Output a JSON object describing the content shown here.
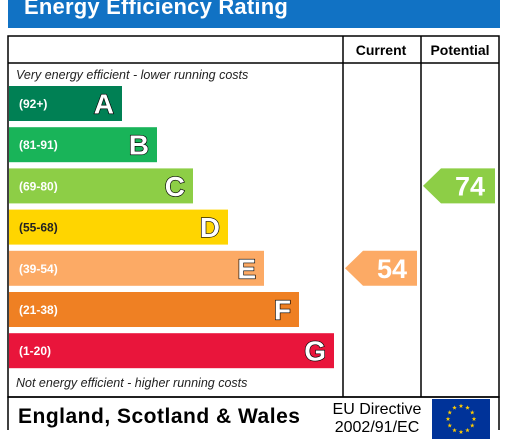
{
  "title": "Energy Efficiency Rating",
  "columns": {
    "current": "Current",
    "potential": "Potential"
  },
  "top_note": "Very energy efficient - lower running costs",
  "bottom_note": "Not energy efficient - higher running costs",
  "footer": {
    "country": "England, Scotland & Wales",
    "directive_line1": "EU Directive",
    "directive_line2": "2002/91/EC"
  },
  "chart_data": {
    "type": "bar",
    "title": "Energy Efficiency Rating",
    "categories": [
      "A",
      "B",
      "C",
      "D",
      "E",
      "F",
      "G"
    ],
    "ranges": [
      "(92+)",
      "(81-91)",
      "(69-80)",
      "(55-68)",
      "(39-54)",
      "(21-38)",
      "(1-20)"
    ],
    "band_colors": [
      "#008054",
      "#19b459",
      "#8dce46",
      "#ffd500",
      "#fcaa65",
      "#ef8023",
      "#e9153b"
    ],
    "current": {
      "value": 54,
      "band": "E",
      "color": "#fcaa65"
    },
    "potential": {
      "value": 74,
      "band": "C",
      "color": "#8dce46"
    }
  }
}
